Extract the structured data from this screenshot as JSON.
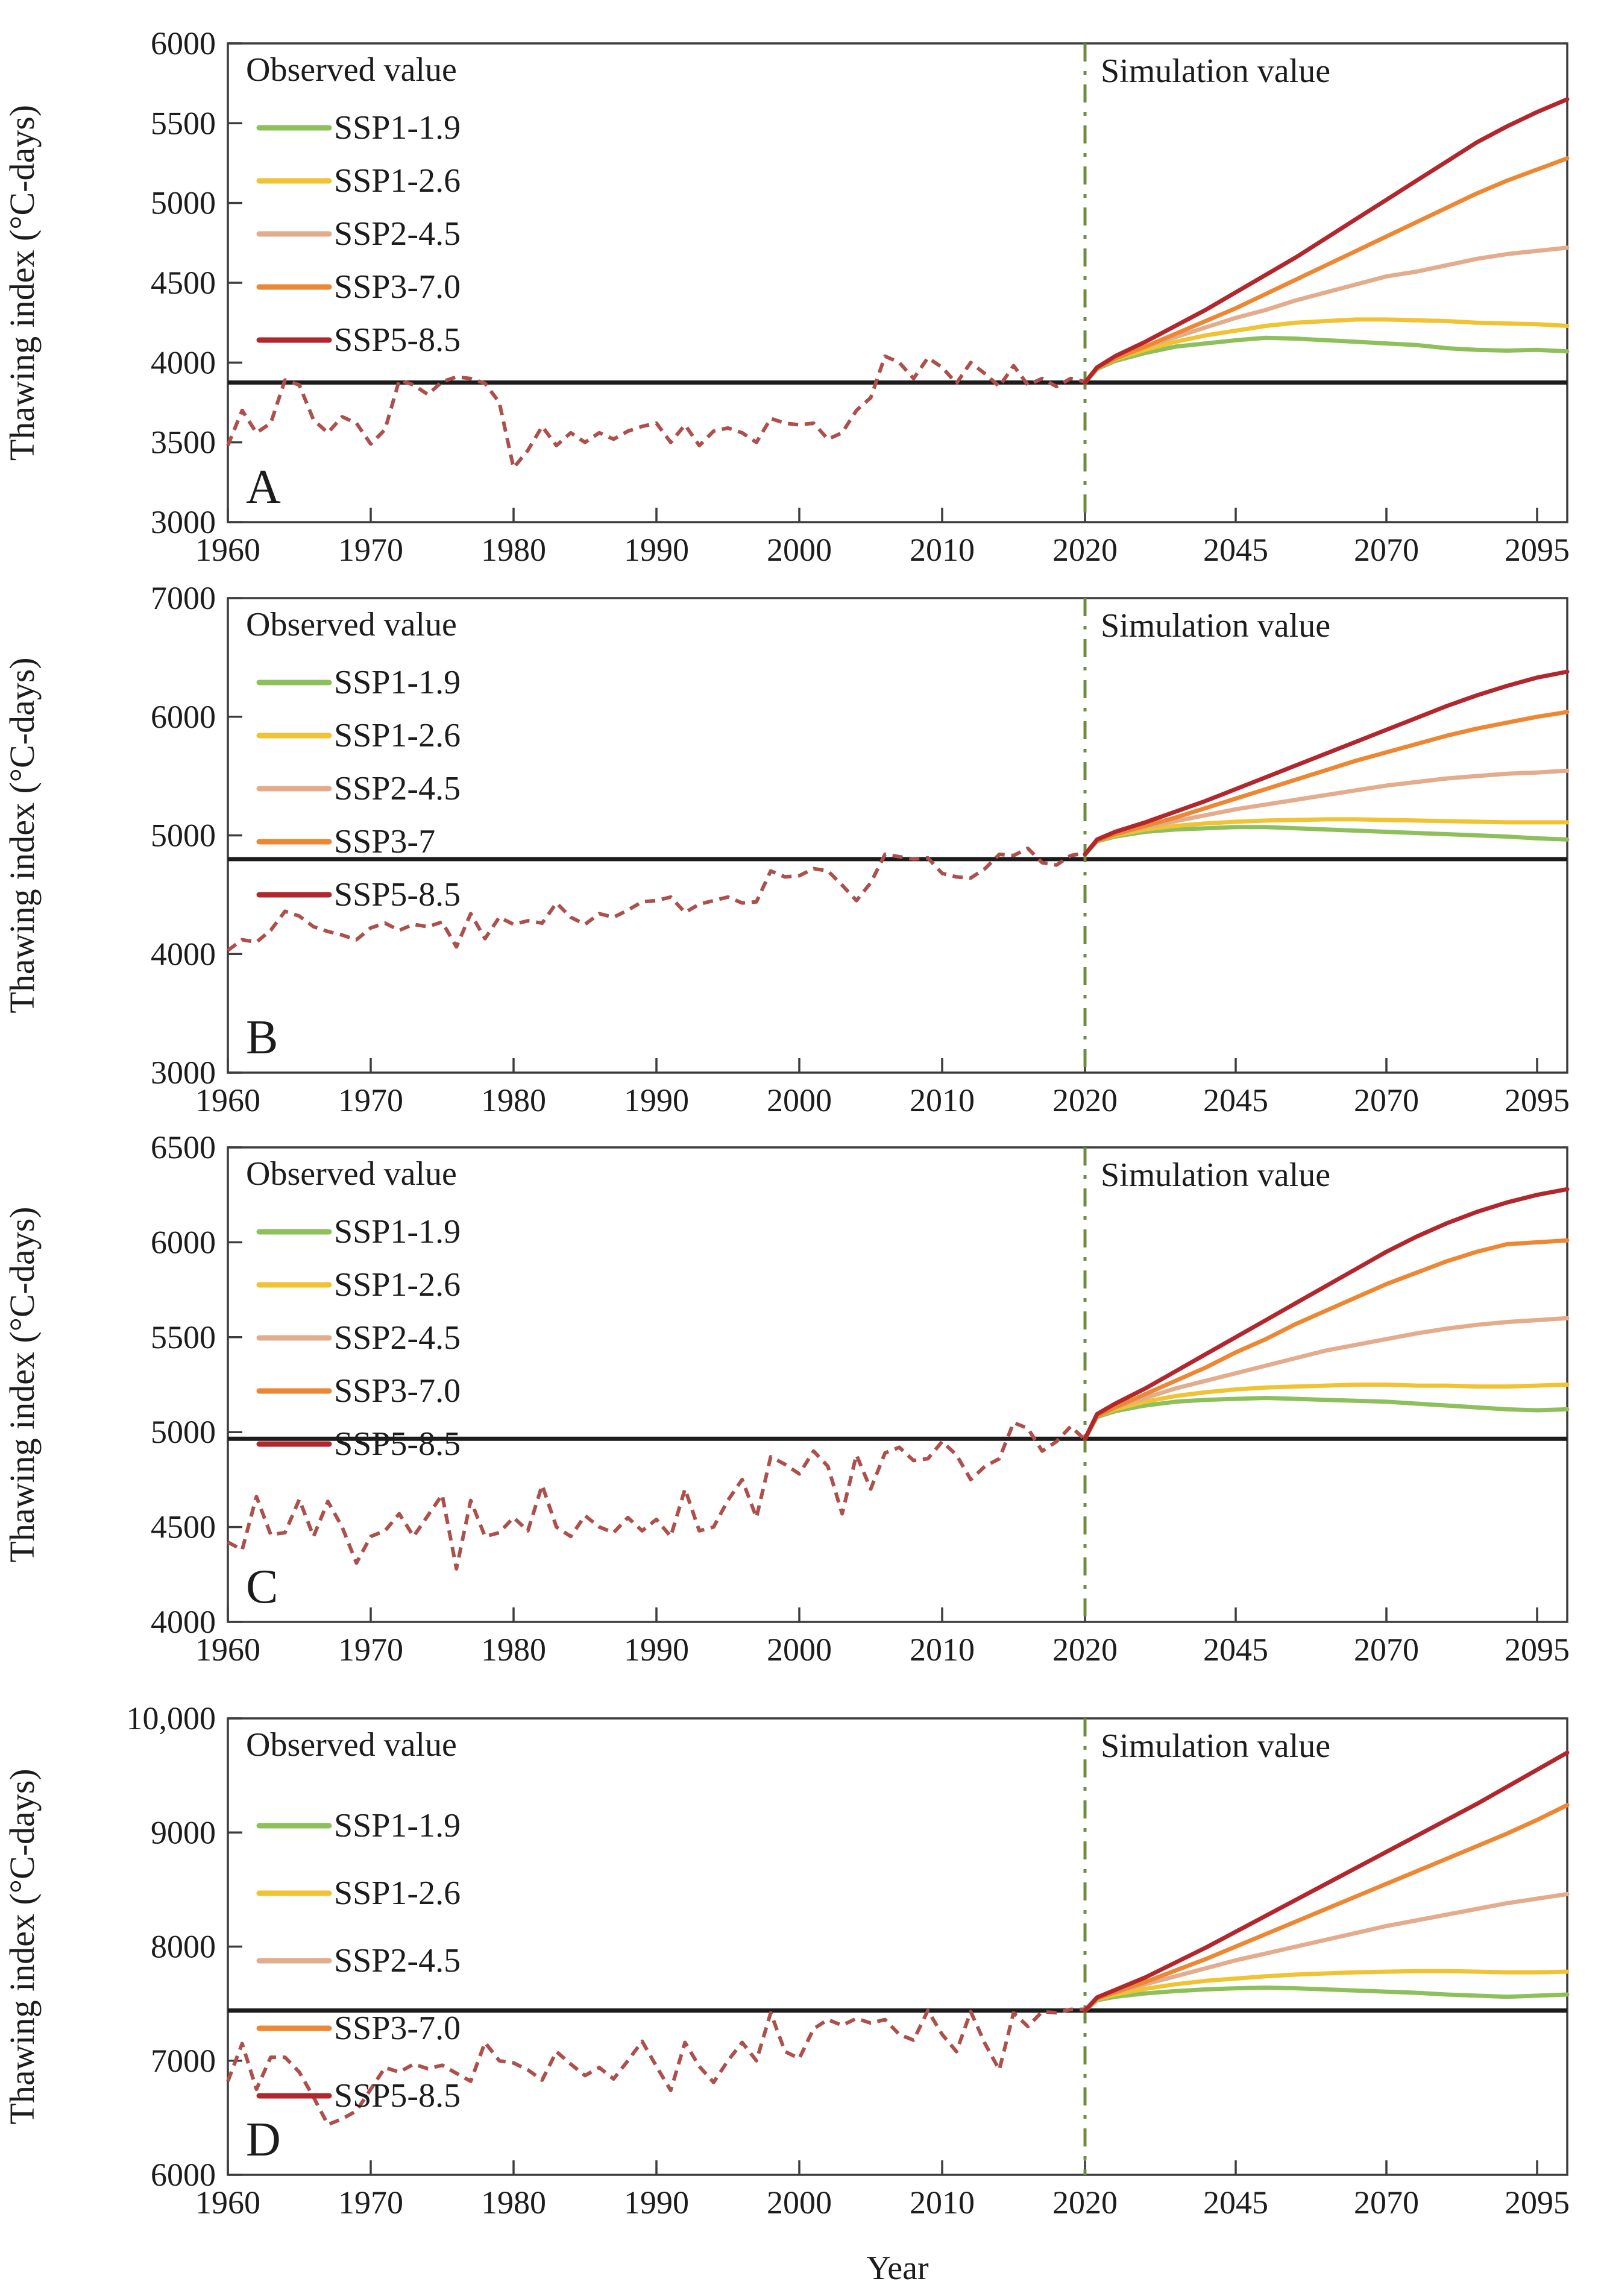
{
  "figure": {
    "ylabel": "Thawing index (°C-days)",
    "xlabel": "Year",
    "legend_title": "Observed value",
    "sim_label": "Simulation value"
  },
  "colors": {
    "green": "#8dc05b",
    "yellow": "#f1c232",
    "salmon": "#e3ac8c",
    "orange": "#ed8733",
    "red": "#b1272d",
    "observed": "#ad4f4b",
    "divider": "#6d8c3e",
    "baseline": "#1c1c1c",
    "axis": "#3c3c3c"
  },
  "x_axis": {
    "tick_years": [
      1960,
      1970,
      1980,
      1990,
      2000,
      2010,
      2020,
      2045,
      2070,
      2095
    ],
    "tick_labels": [
      "1960",
      "1970",
      "1980",
      "1990",
      "2000",
      "2010",
      "2020",
      "2045",
      "2070",
      "2095"
    ],
    "start_year": 1960,
    "break_year": 2020,
    "end_year": 2100,
    "years_per_tick_before_break": 10,
    "years_per_tick_after_break": 25
  },
  "sim_years": [
    2020,
    2022,
    2025,
    2030,
    2035,
    2040,
    2045,
    2050,
    2055,
    2060,
    2065,
    2070,
    2075,
    2080,
    2085,
    2090,
    2095,
    2100
  ],
  "chart_data": [
    {
      "panel": "A",
      "type": "line",
      "ylim": [
        3000,
        6000
      ],
      "ytick_values": [
        3000,
        3500,
        4000,
        4500,
        5000,
        5500,
        6000
      ],
      "ytick_labels": [
        "3000",
        "3500",
        "4000",
        "4500",
        "5000",
        "5500",
        "6000"
      ],
      "baseline": 3875,
      "observed": {
        "start": 1960,
        "step": 1,
        "values": [
          3480,
          3700,
          3560,
          3620,
          3890,
          3860,
          3640,
          3560,
          3660,
          3620,
          3490,
          3580,
          3890,
          3860,
          3800,
          3880,
          3910,
          3900,
          3870,
          3750,
          3340,
          3450,
          3600,
          3480,
          3560,
          3500,
          3560,
          3520,
          3570,
          3600,
          3620,
          3500,
          3610,
          3480,
          3570,
          3590,
          3560,
          3500,
          3650,
          3620,
          3610,
          3620,
          3520,
          3560,
          3700,
          3780,
          4040,
          4000,
          3900,
          4030,
          3970,
          3870,
          4000,
          3930,
          3850,
          3980,
          3860,
          3900,
          3850,
          3900,
          3880
        ]
      },
      "series": [
        {
          "name": "SSP1-1.9",
          "color_key": "green",
          "values": [
            3875,
            3960,
            4010,
            4060,
            4100,
            4120,
            4140,
            4155,
            4150,
            4140,
            4130,
            4120,
            4110,
            4090,
            4080,
            4075,
            4080,
            4070
          ]
        },
        {
          "name": "SSP1-2.6",
          "color_key": "yellow",
          "values": [
            3875,
            3965,
            4020,
            4080,
            4130,
            4170,
            4200,
            4230,
            4250,
            4260,
            4270,
            4270,
            4265,
            4260,
            4250,
            4245,
            4240,
            4230
          ]
        },
        {
          "name": "SSP2-4.5",
          "color_key": "salmon",
          "values": [
            3875,
            3970,
            4030,
            4100,
            4160,
            4220,
            4280,
            4330,
            4390,
            4440,
            4490,
            4540,
            4570,
            4610,
            4650,
            4680,
            4700,
            4720
          ]
        },
        {
          "name": "SSP3-7.0",
          "color_key": "orange",
          "values": [
            3875,
            3965,
            4025,
            4100,
            4180,
            4260,
            4340,
            4430,
            4520,
            4610,
            4700,
            4790,
            4880,
            4970,
            5060,
            5140,
            5210,
            5280
          ]
        },
        {
          "name": "SSP5-8.5",
          "color_key": "red",
          "values": [
            3875,
            3970,
            4040,
            4130,
            4230,
            4330,
            4440,
            4550,
            4660,
            4780,
            4900,
            5020,
            5140,
            5260,
            5380,
            5480,
            5570,
            5650
          ]
        }
      ]
    },
    {
      "panel": "B",
      "type": "line",
      "ylim": [
        3000,
        7000
      ],
      "ytick_values": [
        3000,
        4000,
        5000,
        6000,
        7000
      ],
      "ytick_labels": [
        "3000",
        "4000",
        "5000",
        "6000",
        "7000"
      ],
      "baseline": 4800,
      "observed": {
        "start": 1960,
        "step": 1,
        "values": [
          4030,
          4120,
          4100,
          4200,
          4360,
          4320,
          4230,
          4190,
          4160,
          4120,
          4220,
          4260,
          4200,
          4250,
          4230,
          4270,
          4060,
          4340,
          4130,
          4310,
          4250,
          4280,
          4260,
          4430,
          4310,
          4250,
          4340,
          4310,
          4370,
          4440,
          4450,
          4480,
          4350,
          4420,
          4450,
          4480,
          4430,
          4440,
          4700,
          4650,
          4660,
          4720,
          4700,
          4580,
          4450,
          4600,
          4840,
          4820,
          4800,
          4810,
          4680,
          4650,
          4640,
          4720,
          4840,
          4830,
          4890,
          4770,
          4750,
          4830,
          4850
        ]
      },
      "series": [
        {
          "name": "SSP1-1.9",
          "color_key": "green",
          "values": [
            4840,
            4950,
            4990,
            5030,
            5050,
            5060,
            5070,
            5070,
            5060,
            5050,
            5040,
            5030,
            5020,
            5010,
            5000,
            4990,
            4975,
            4965
          ]
        },
        {
          "name": "SSP1-2.6",
          "color_key": "yellow",
          "values": [
            4840,
            4955,
            5000,
            5050,
            5080,
            5100,
            5115,
            5125,
            5130,
            5135,
            5135,
            5130,
            5125,
            5120,
            5115,
            5110,
            5110,
            5110
          ]
        },
        {
          "name": "SSP2-4.5",
          "color_key": "salmon",
          "values": [
            4840,
            4960,
            5010,
            5070,
            5120,
            5170,
            5220,
            5260,
            5300,
            5340,
            5380,
            5420,
            5450,
            5480,
            5500,
            5520,
            5530,
            5545
          ]
        },
        {
          "name": "SSP3-7",
          "color_key": "orange",
          "values": [
            4840,
            4955,
            5010,
            5080,
            5150,
            5230,
            5310,
            5390,
            5470,
            5550,
            5630,
            5700,
            5770,
            5840,
            5900,
            5950,
            6000,
            6040
          ]
        },
        {
          "name": "SSP5-8.5",
          "color_key": "red",
          "values": [
            4840,
            4965,
            5030,
            5110,
            5200,
            5290,
            5390,
            5490,
            5590,
            5690,
            5790,
            5890,
            5990,
            6090,
            6180,
            6260,
            6330,
            6380
          ]
        }
      ]
    },
    {
      "panel": "C",
      "type": "line",
      "ylim": [
        4000,
        6500
      ],
      "ytick_values": [
        4000,
        4500,
        5000,
        5500,
        6000,
        6500
      ],
      "ytick_labels": [
        "4000",
        "4500",
        "5000",
        "5500",
        "6000",
        "6500"
      ],
      "baseline": 4965,
      "observed": {
        "start": 1960,
        "step": 1,
        "values": [
          4420,
          4380,
          4660,
          4460,
          4470,
          4645,
          4450,
          4635,
          4500,
          4310,
          4450,
          4480,
          4570,
          4450,
          4560,
          4670,
          4280,
          4640,
          4450,
          4470,
          4550,
          4480,
          4720,
          4500,
          4450,
          4560,
          4500,
          4470,
          4550,
          4480,
          4540,
          4450,
          4700,
          4480,
          4500,
          4640,
          4750,
          4550,
          4870,
          4830,
          4780,
          4900,
          4820,
          4570,
          4880,
          4700,
          4890,
          4920,
          4850,
          4860,
          4950,
          4880,
          4750,
          4820,
          4860,
          5050,
          5020,
          4900,
          4950,
          5030,
          4960
        ]
      },
      "series": [
        {
          "name": "SSP1-1.9",
          "color_key": "green",
          "values": [
            4965,
            5080,
            5110,
            5140,
            5160,
            5170,
            5175,
            5180,
            5175,
            5170,
            5165,
            5160,
            5150,
            5140,
            5130,
            5120,
            5115,
            5120
          ]
        },
        {
          "name": "SSP1-2.6",
          "color_key": "yellow",
          "values": [
            4965,
            5085,
            5120,
            5160,
            5190,
            5210,
            5225,
            5235,
            5240,
            5245,
            5250,
            5250,
            5245,
            5245,
            5240,
            5240,
            5245,
            5250
          ]
        },
        {
          "name": "SSP2-4.5",
          "color_key": "salmon",
          "values": [
            4965,
            5090,
            5130,
            5180,
            5230,
            5270,
            5310,
            5350,
            5390,
            5430,
            5460,
            5490,
            5520,
            5545,
            5565,
            5580,
            5590,
            5600
          ]
        },
        {
          "name": "SSP3-7.0",
          "color_key": "orange",
          "values": [
            4965,
            5085,
            5130,
            5200,
            5270,
            5340,
            5420,
            5490,
            5570,
            5640,
            5710,
            5780,
            5840,
            5900,
            5950,
            5990,
            6000,
            6010
          ]
        },
        {
          "name": "SSP5-8.5",
          "color_key": "red",
          "values": [
            4965,
            5095,
            5150,
            5230,
            5320,
            5410,
            5500,
            5590,
            5680,
            5770,
            5860,
            5950,
            6030,
            6100,
            6160,
            6210,
            6250,
            6280
          ]
        }
      ]
    },
    {
      "panel": "D",
      "type": "line",
      "ylim": [
        6000,
        10000
      ],
      "ytick_values": [
        6000,
        7000,
        8000,
        9000,
        10000
      ],
      "ytick_labels": [
        "6000",
        "7000",
        "8000",
        "9000",
        "10,000"
      ],
      "baseline": 7440,
      "observed": {
        "start": 1960,
        "step": 1,
        "values": [
          6820,
          7150,
          6750,
          7030,
          7030,
          6900,
          6680,
          6440,
          6490,
          6560,
          6750,
          6940,
          6900,
          6970,
          6930,
          6960,
          6890,
          6820,
          7160,
          7000,
          6980,
          6920,
          6830,
          7080,
          6970,
          6870,
          6940,
          6840,
          7000,
          7170,
          6950,
          6740,
          7160,
          6950,
          6810,
          7000,
          7160,
          7000,
          7420,
          7080,
          7020,
          7280,
          7360,
          7310,
          7370,
          7330,
          7360,
          7230,
          7180,
          7440,
          7230,
          7080,
          7430,
          7150,
          6920,
          7420,
          7300,
          7430,
          7420,
          7450,
          7450
        ]
      },
      "series": [
        {
          "name": "SSP1-1.9",
          "color_key": "green",
          "values": [
            7440,
            7530,
            7560,
            7590,
            7610,
            7625,
            7635,
            7640,
            7635,
            7625,
            7615,
            7605,
            7595,
            7580,
            7570,
            7560,
            7570,
            7580
          ]
        },
        {
          "name": "SSP1-2.6",
          "color_key": "yellow",
          "values": [
            7440,
            7540,
            7580,
            7630,
            7670,
            7700,
            7720,
            7740,
            7755,
            7765,
            7775,
            7780,
            7785,
            7785,
            7780,
            7775,
            7775,
            7780
          ]
        },
        {
          "name": "SSP2-4.5",
          "color_key": "salmon",
          "values": [
            7440,
            7550,
            7600,
            7670,
            7740,
            7810,
            7880,
            7940,
            8000,
            8060,
            8120,
            8180,
            8230,
            8280,
            8330,
            8380,
            8420,
            8460
          ]
        },
        {
          "name": "SSP3-7.0",
          "color_key": "orange",
          "values": [
            7440,
            7545,
            7600,
            7690,
            7790,
            7890,
            8000,
            8110,
            8220,
            8330,
            8440,
            8550,
            8660,
            8770,
            8880,
            8990,
            9110,
            9240
          ]
        },
        {
          "name": "SSP5-8.5",
          "color_key": "red",
          "values": [
            7440,
            7555,
            7620,
            7730,
            7860,
            7990,
            8130,
            8270,
            8410,
            8550,
            8690,
            8830,
            8970,
            9110,
            9250,
            9400,
            9550,
            9700
          ]
        }
      ]
    }
  ]
}
